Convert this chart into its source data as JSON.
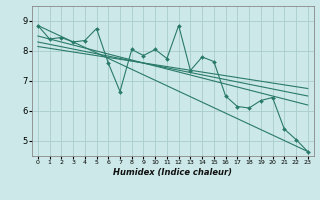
{
  "xlabel": "Humidex (Indice chaleur)",
  "xlim": [
    -0.5,
    23.5
  ],
  "ylim": [
    4.5,
    9.5
  ],
  "xticks": [
    0,
    1,
    2,
    3,
    4,
    5,
    6,
    7,
    8,
    9,
    10,
    11,
    12,
    13,
    14,
    15,
    16,
    17,
    18,
    19,
    20,
    21,
    22,
    23
  ],
  "yticks": [
    5,
    6,
    7,
    8,
    9
  ],
  "bg_color": "#cce8e8",
  "grid_color": "#aacccc",
  "line_color": "#2a7a6a",
  "jagged_x": [
    0,
    1,
    2,
    3,
    4,
    5,
    6,
    7,
    8,
    9,
    10,
    11,
    12,
    13,
    14,
    15,
    16,
    17,
    18,
    19,
    20,
    21,
    22,
    23
  ],
  "jagged_y": [
    8.85,
    8.4,
    8.45,
    8.3,
    8.35,
    8.75,
    7.6,
    6.65,
    8.05,
    7.85,
    8.05,
    7.75,
    8.85,
    7.35,
    7.8,
    7.65,
    6.5,
    6.15,
    6.1,
    6.35,
    6.45,
    5.4,
    5.05,
    4.65
  ],
  "trend1_x": [
    0,
    23
  ],
  "trend1_y": [
    8.85,
    4.65
  ],
  "trend2_x": [
    0,
    23
  ],
  "trend2_y": [
    8.5,
    6.2
  ],
  "trend3_x": [
    0,
    23
  ],
  "trend3_y": [
    8.3,
    6.5
  ],
  "trend4_x": [
    0,
    23
  ],
  "trend4_y": [
    8.15,
    6.75
  ]
}
